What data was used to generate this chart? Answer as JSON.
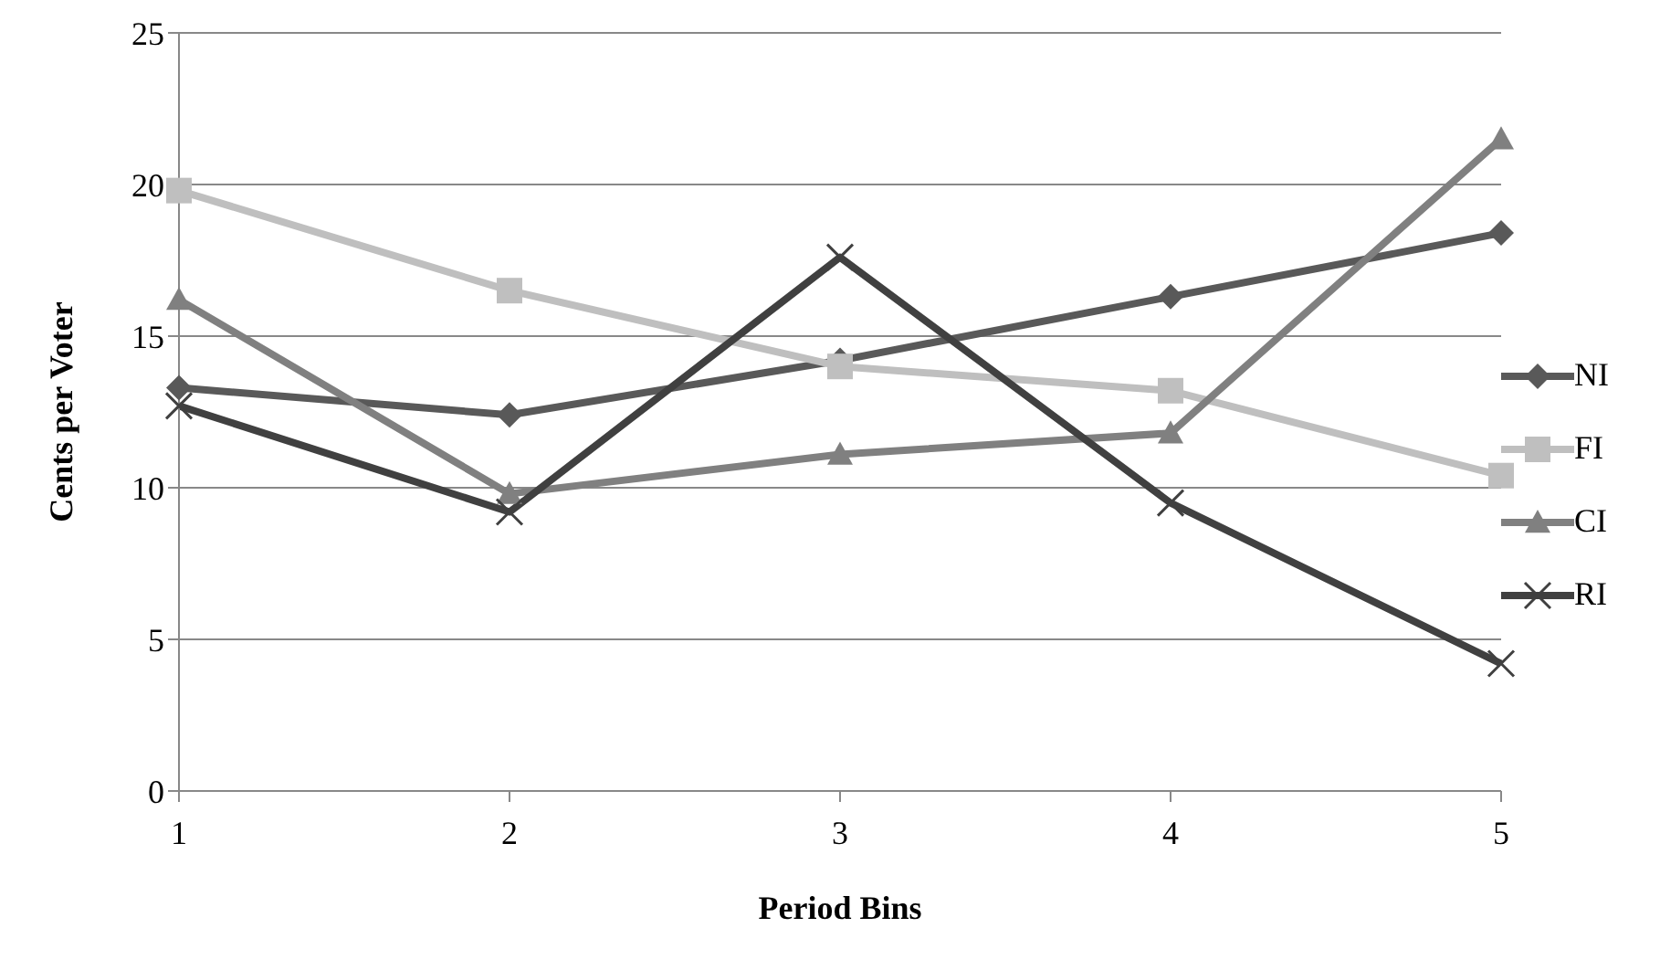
{
  "chart_data": {
    "type": "line",
    "xlabel": "Period Bins",
    "ylabel": "Cents per Voter",
    "categories": [
      "1",
      "2",
      "3",
      "4",
      "5"
    ],
    "ylim": [
      0,
      25
    ],
    "yticks": [
      0,
      5,
      10,
      15,
      20,
      25
    ],
    "grid": "y",
    "legend": "right",
    "series": [
      {
        "name": "NI",
        "color": "#595959",
        "marker": "diamond",
        "values": [
          13.3,
          12.4,
          14.2,
          16.3,
          18.4
        ]
      },
      {
        "name": "FI",
        "color": "#bfbfbf",
        "marker": "square",
        "values": [
          19.8,
          16.5,
          14.0,
          13.2,
          10.4
        ]
      },
      {
        "name": "CI",
        "color": "#808080",
        "marker": "triangle",
        "values": [
          16.2,
          9.8,
          11.1,
          11.8,
          21.5
        ]
      },
      {
        "name": "RI",
        "color": "#404040",
        "marker": "cross",
        "values": [
          12.7,
          9.2,
          17.6,
          9.5,
          4.2
        ]
      }
    ]
  }
}
